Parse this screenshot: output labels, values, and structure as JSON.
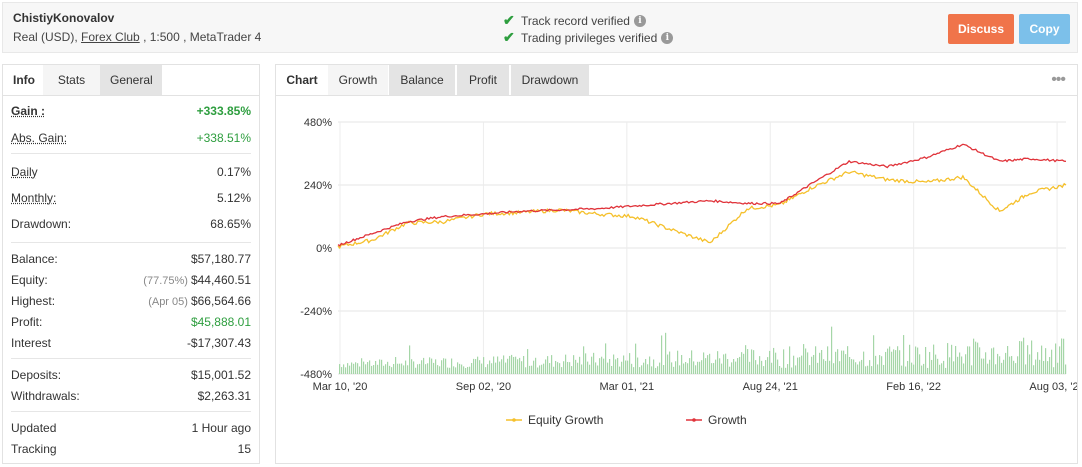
{
  "header": {
    "account_name": "ChistiyKonovalov",
    "account_type": "Real (USD),",
    "broker": "Forex Club",
    "meta_rest": ", 1:500 , MetaTrader 4",
    "verify_track": "Track record verified",
    "verify_trading": "Trading privileges verified",
    "discuss_label": "Discuss",
    "copy_label": "Copy"
  },
  "left_tabs": {
    "info": "Info",
    "stats": "Stats",
    "general": "General"
  },
  "stats": {
    "gain_label": "Gain :",
    "gain_value": "+333.85%",
    "abs_gain_label": "Abs. Gain:",
    "abs_gain_value": "+338.51%",
    "daily_label": "Daily",
    "daily_value": "0.17%",
    "monthly_label": "Monthly:",
    "monthly_value": "5.12%",
    "drawdown_label": "Drawdown:",
    "drawdown_value": "68.65%",
    "balance_label": "Balance:",
    "balance_value": "$57,180.77",
    "equity_label": "Equity:",
    "equity_pct": "(77.75%)",
    "equity_value": "$44,460.51",
    "highest_label": "Highest:",
    "highest_date": "(Apr 05)",
    "highest_value": "$66,564.66",
    "profit_label": "Profit:",
    "profit_value": "$45,888.01",
    "interest_label": "Interest",
    "interest_value": "-$17,307.43",
    "deposits_label": "Deposits:",
    "deposits_value": "$15,001.52",
    "withdrawals_label": "Withdrawals:",
    "withdrawals_value": "$2,263.31",
    "updated_label": "Updated",
    "updated_value": "1 Hour ago",
    "tracking_label": "Tracking",
    "tracking_value": "15"
  },
  "chart_tabs": {
    "chart": "Chart",
    "growth": "Growth",
    "balance": "Balance",
    "profit": "Profit",
    "drawdown": "Drawdown"
  },
  "colors": {
    "equity": "#f5c02b",
    "growth": "#e0333a",
    "volume": "#a5d6a7",
    "green": "#2e9e3f",
    "discuss": "#f0744a",
    "copy": "#7cc0ea"
  },
  "chart_data": {
    "type": "line",
    "ylim": [
      -480,
      480
    ],
    "y_ticks": [
      "480%",
      "240%",
      "0%",
      "-240%",
      "-480%"
    ],
    "y_tick_values": [
      480,
      240,
      0,
      -240,
      -480
    ],
    "x_ticks": [
      "Mar 10, '20",
      "Sep 02, '20",
      "Mar 01, '21",
      "Aug 24, '21",
      "Feb 16, '22",
      "Aug 03, '22"
    ],
    "x": [
      "2020-03-10",
      "2020-04-20",
      "2020-06-01",
      "2020-07-15",
      "2020-09-02",
      "2020-10-15",
      "2020-12-01",
      "2021-01-15",
      "2021-03-01",
      "2021-04-15",
      "2021-06-01",
      "2021-07-15",
      "2021-08-24",
      "2021-10-01",
      "2021-11-15",
      "2021-12-31",
      "2022-02-16",
      "2022-04-01",
      "2022-05-15",
      "2022-06-20",
      "2022-08-03"
    ],
    "series": [
      {
        "name": "Equity Growth",
        "values": [
          5,
          30,
          95,
          100,
          130,
          135,
          145,
          130,
          120,
          70,
          20,
          150,
          165,
          230,
          290,
          260,
          250,
          270,
          140,
          210,
          240
        ]
      },
      {
        "name": "Growth",
        "values": [
          10,
          55,
          100,
          120,
          130,
          140,
          145,
          150,
          160,
          170,
          180,
          170,
          170,
          245,
          330,
          310,
          345,
          395,
          330,
          340,
          330
        ]
      }
    ],
    "legend_position": "bottom",
    "grid": true
  }
}
